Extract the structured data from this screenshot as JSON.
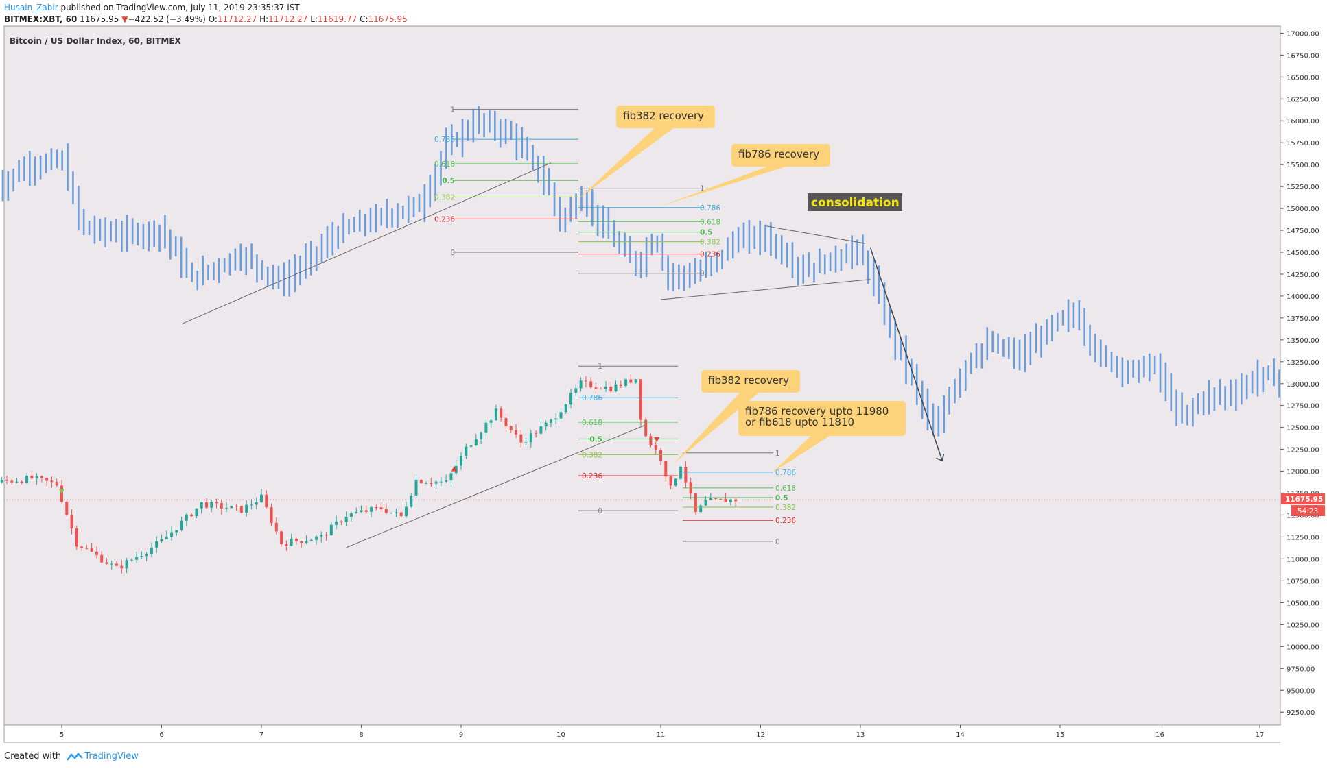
{
  "header": {
    "author": "Husain_Zabir",
    "published": " published on TradingView.com, July 11, 2019 23:35:37 IST",
    "symbol": "BITMEX:XBT, 60",
    "last": "11675.95",
    "change": "−422.52 (−3.49%)",
    "open_label": "O:",
    "open": "11712.27",
    "high_label": "H:",
    "high": "11712.27",
    "low_label": "L:",
    "low": "11619.77",
    "close_label": "C:",
    "close": "11675.95"
  },
  "footer": {
    "created_with": "Created with",
    "brand": "TradingView"
  },
  "chart_data": {
    "type": "candlestick",
    "title": "Bitcoin / US Dollar Index, 60, BITMEX",
    "ylim": [
      9150,
      17050
    ],
    "yticks": [
      17000,
      16750,
      16500,
      16250,
      16000,
      15750,
      15500,
      15250,
      15000,
      14750,
      14500,
      14250,
      14000,
      13750,
      13500,
      13250,
      13000,
      12750,
      12500,
      12250,
      12000,
      11750,
      11500,
      11250,
      11000,
      10750,
      10500,
      10250,
      10000,
      9750,
      9500,
      9250
    ],
    "ytick_labels": [
      "17000.00",
      "16750.00",
      "16500.00",
      "16250.00",
      "16000.00",
      "15750.00",
      "15500.00",
      "15250.00",
      "15000.00",
      "14750.00",
      "14500.00",
      "14250.00",
      "14000.00",
      "13750.00",
      "13500.00",
      "13250.00",
      "13000.00",
      "12750.00",
      "12500.00",
      "12250.00",
      "12000.00",
      "11750.00",
      "11500.00",
      "11250.00",
      "11000.00",
      "10750.00",
      "10500.00",
      "10250.00",
      "10000.00",
      "9750.00",
      "9500.00",
      "9250.00"
    ],
    "xticks": [
      5,
      6,
      7,
      8,
      9,
      10,
      11,
      12,
      13,
      14,
      15,
      16,
      17
    ],
    "xtick_labels": [
      "5",
      "6",
      "7",
      "8",
      "9",
      "10",
      "11",
      "12",
      "13",
      "14",
      "15",
      "16",
      "17"
    ],
    "price_label": "11675.95",
    "countdown_label": "54:23",
    "grid": false,
    "colors": {
      "up": "#26a69a",
      "down": "#ef5350",
      "projection": "#6a9bdb",
      "background": "#ece8eb",
      "callout": "#fcd37b",
      "consolidation_bg": "#555555",
      "consolidation_text": "#f5e50a"
    },
    "fib_sets": [
      {
        "levels": [
          {
            "label": "1",
            "price": 16130,
            "color": "#787878"
          },
          {
            "label": "0.786",
            "price": 15790,
            "color": "#3fa9d6"
          },
          {
            "label": "0.618",
            "price": 15510,
            "color": "#53c053"
          },
          {
            "label": "0.5",
            "price": 15320,
            "color": "#4caf50"
          },
          {
            "label": "0.382",
            "price": 15130,
            "color": "#8bc34a"
          },
          {
            "label": "0.236",
            "price": 14880,
            "color": "#d32f2f"
          },
          {
            "label": "0",
            "price": 14500,
            "color": "#787878"
          }
        ]
      },
      {
        "levels": [
          {
            "label": "1",
            "price": 15230,
            "color": "#787878"
          },
          {
            "label": "0.786",
            "price": 15010,
            "color": "#3fa9d6"
          },
          {
            "label": "0.618",
            "price": 14850,
            "color": "#53c053"
          },
          {
            "label": "0.5",
            "price": 14730,
            "color": "#4caf50"
          },
          {
            "label": "0.382",
            "price": 14620,
            "color": "#8bc34a"
          },
          {
            "label": "0.236",
            "price": 14480,
            "color": "#d32f2f"
          },
          {
            "label": "0",
            "price": 14260,
            "color": "#787878"
          }
        ]
      },
      {
        "levels": [
          {
            "label": "1",
            "price": 13200,
            "color": "#787878"
          },
          {
            "label": "0.786",
            "price": 12840,
            "color": "#3fa9d6"
          },
          {
            "label": "0.618",
            "price": 12560,
            "color": "#53c053"
          },
          {
            "label": "0.5",
            "price": 12370,
            "color": "#4caf50"
          },
          {
            "label": "0.382",
            "price": 12190,
            "color": "#8bc34a"
          },
          {
            "label": "0.236",
            "price": 11950,
            "color": "#d32f2f"
          },
          {
            "label": "0",
            "price": 11550,
            "color": "#787878"
          }
        ]
      },
      {
        "levels": [
          {
            "label": "1",
            "price": 12210,
            "color": "#787878"
          },
          {
            "label": "0.786",
            "price": 11990,
            "color": "#3fa9d6"
          },
          {
            "label": "0.618",
            "price": 11810,
            "color": "#53c053"
          },
          {
            "label": "0.5",
            "price": 11700,
            "color": "#4caf50"
          },
          {
            "label": "0.382",
            "price": 11590,
            "color": "#8bc34a"
          },
          {
            "label": "0.236",
            "price": 11440,
            "color": "#d32f2f"
          },
          {
            "label": "0",
            "price": 11200,
            "color": "#787878"
          }
        ]
      }
    ],
    "annotations": [
      {
        "text": "fib382 recovery"
      },
      {
        "text": "fib786 recovery"
      },
      {
        "text": "consolidation"
      },
      {
        "text": "fib382 recovery"
      },
      {
        "text": "fib786 recovery upto 11980"
      },
      {
        "text": "or fib618 upto 11810"
      }
    ],
    "candles_approx": {
      "x_start": 4.3,
      "x_end": 11.75,
      "count": 150,
      "anchor_closes": [
        [
          4.3,
          11870
        ],
        [
          4.7,
          11920
        ],
        [
          4.95,
          11850
        ],
        [
          5.15,
          11180
        ],
        [
          5.55,
          10890
        ],
        [
          6.0,
          11200
        ],
        [
          6.4,
          11630
        ],
        [
          6.8,
          11560
        ],
        [
          7.0,
          11700
        ],
        [
          7.2,
          11180
        ],
        [
          7.6,
          11250
        ],
        [
          7.85,
          11500
        ],
        [
          8.2,
          11580
        ],
        [
          8.4,
          11480
        ],
        [
          8.55,
          11900
        ],
        [
          8.85,
          11870
        ],
        [
          9.05,
          12260
        ],
        [
          9.35,
          12680
        ],
        [
          9.6,
          12330
        ],
        [
          9.9,
          12570
        ],
        [
          10.2,
          13000
        ],
        [
          10.5,
          12950
        ],
        [
          10.75,
          13060
        ],
        [
          10.82,
          12450
        ],
        [
          11.0,
          12150
        ],
        [
          11.1,
          11800
        ],
        [
          11.2,
          12080
        ],
        [
          11.35,
          11520
        ],
        [
          11.45,
          11650
        ],
        [
          11.75,
          11676
        ]
      ]
    },
    "projection_approx": {
      "x_start": 4.3,
      "x_end": 17.25,
      "count": 240,
      "anchor_closes": [
        [
          4.3,
          15200
        ],
        [
          4.65,
          15480
        ],
        [
          5.0,
          15550
        ],
        [
          5.2,
          14780
        ],
        [
          5.6,
          14700
        ],
        [
          6.0,
          14750
        ],
        [
          6.3,
          14200
        ],
        [
          6.8,
          14470
        ],
        [
          7.2,
          14150
        ],
        [
          7.8,
          14750
        ],
        [
          8.2,
          14900
        ],
        [
          8.6,
          15050
        ],
        [
          8.85,
          15700
        ],
        [
          9.15,
          16000
        ],
        [
          9.5,
          15850
        ],
        [
          9.85,
          15300
        ],
        [
          10.0,
          14850
        ],
        [
          10.2,
          15150
        ],
        [
          10.45,
          14750
        ],
        [
          10.75,
          14350
        ],
        [
          10.95,
          14700
        ],
        [
          11.05,
          14250
        ],
        [
          11.3,
          14230
        ],
        [
          11.55,
          14400
        ],
        [
          11.75,
          14650
        ],
        [
          12.05,
          14680
        ],
        [
          12.4,
          14300
        ],
        [
          12.7,
          14400
        ],
        [
          12.95,
          14550
        ],
        [
          13.1,
          14250
        ],
        [
          13.3,
          13600
        ],
        [
          13.5,
          13100
        ],
        [
          13.75,
          12400
        ],
        [
          13.85,
          12800
        ],
        [
          14.1,
          13300
        ],
        [
          14.3,
          13450
        ],
        [
          14.6,
          13300
        ],
        [
          14.95,
          13700
        ],
        [
          15.15,
          13800
        ],
        [
          15.4,
          13300
        ],
        [
          15.7,
          13150
        ],
        [
          15.95,
          13200
        ],
        [
          16.2,
          12600
        ],
        [
          16.45,
          12850
        ],
        [
          16.75,
          12900
        ],
        [
          17.0,
          13100
        ],
        [
          17.25,
          13050
        ]
      ]
    }
  }
}
